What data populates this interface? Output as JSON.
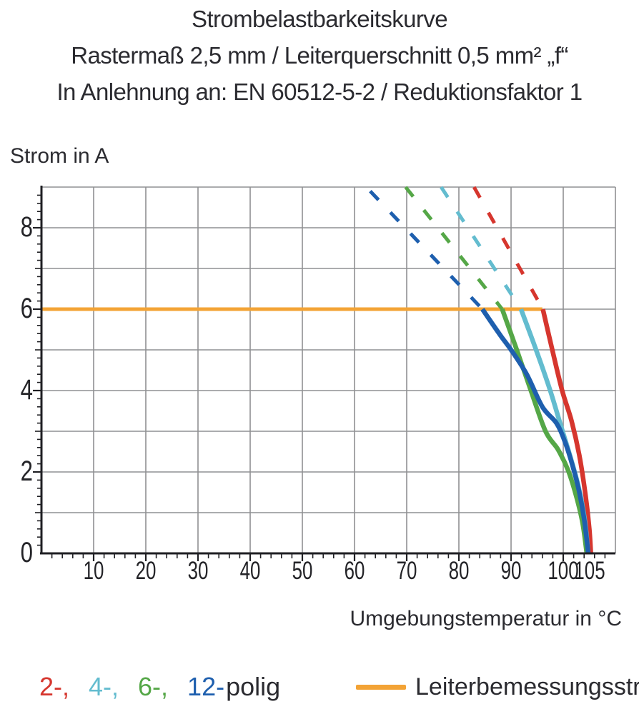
{
  "title": {
    "line1": "Strombelastbarkeitskurve",
    "line2": "Rastermaß 2,5 mm / Leiterquerschnitt 0,5 mm² „f“",
    "line3": "In Anlehnung an: EN 60512-5-2 / Reduktionsfaktor 1"
  },
  "chart_data": {
    "type": "line",
    "title": "Strombelastbarkeitskurve",
    "xlabel": "Umgebungstemperatur in °C",
    "ylabel": "Strom in A",
    "xlim": [
      0,
      110
    ],
    "ylim": [
      0,
      9
    ],
    "grid": "on",
    "x_ticks": [
      10,
      20,
      30,
      40,
      50,
      60,
      70,
      80,
      90,
      100,
      105
    ],
    "y_ticks": [
      0,
      2,
      4,
      6,
      8
    ],
    "x_gridlines_every": 10,
    "y_gridlines_every": 1,
    "reference_line": {
      "label": "Leiterbemessungsstrom",
      "value_A": 6,
      "x_start": 0,
      "x_end": 96,
      "color": "#F3A335"
    },
    "series": [
      {
        "name": "2-polig",
        "color": "#D6362E",
        "dashed": [
          [
            82.9,
            9
          ],
          [
            96.1,
            6
          ]
        ],
        "solid": [
          [
            96.1,
            6
          ],
          [
            97.9,
            5.0
          ],
          [
            99.8,
            4.0
          ],
          [
            101.6,
            3.25
          ],
          [
            103.1,
            2.4
          ],
          [
            104.3,
            1.4
          ],
          [
            105.0,
            0.6
          ],
          [
            105.3,
            0
          ]
        ]
      },
      {
        "name": "4-polig",
        "color": "#63BCCF",
        "dashed": [
          [
            76.6,
            9
          ],
          [
            91.9,
            6
          ]
        ],
        "solid": [
          [
            91.9,
            6
          ],
          [
            94.8,
            5.0
          ],
          [
            97.5,
            4.0
          ],
          [
            99.4,
            3.2
          ],
          [
            101.3,
            2.4
          ],
          [
            102.9,
            1.65
          ],
          [
            104.1,
            0.85
          ],
          [
            104.8,
            0
          ]
        ]
      },
      {
        "name": "6-polig",
        "color": "#55A747",
        "dashed": [
          [
            69.8,
            9
          ],
          [
            88.3,
            6
          ]
        ],
        "solid": [
          [
            88.3,
            6
          ],
          [
            91.1,
            5.0
          ],
          [
            93.8,
            4.0
          ],
          [
            96.6,
            3.0
          ],
          [
            99.0,
            2.55
          ],
          [
            100.9,
            2.05
          ],
          [
            102.4,
            1.45
          ],
          [
            103.7,
            0.75
          ],
          [
            104.5,
            0
          ]
        ]
      },
      {
        "name": "12-polig",
        "color": "#1E5FAE",
        "dashed": [
          [
            63.0,
            8.9
          ],
          [
            84.5,
            6
          ]
        ],
        "solid": [
          [
            84.5,
            6
          ],
          [
            88.0,
            5.35
          ],
          [
            90.0,
            5.0
          ],
          [
            93.0,
            4.4
          ],
          [
            96.0,
            3.6
          ],
          [
            98.7,
            3.2
          ],
          [
            100.3,
            2.75
          ],
          [
            101.8,
            2.15
          ],
          [
            103.0,
            1.55
          ],
          [
            104.0,
            0.85
          ],
          [
            104.8,
            0
          ]
        ]
      }
    ]
  },
  "legend": {
    "pole_items": [
      {
        "label": "2-,",
        "color": "#D6362E"
      },
      {
        "label": "4-,",
        "color": "#63BCCF"
      },
      {
        "label": "6-,",
        "color": "#55A747"
      },
      {
        "label": "12-",
        "color": "#1E5FAE"
      }
    ],
    "suffix": "polig",
    "reference": {
      "label": "Leiterbemessungsstrom",
      "color": "#F3A335"
    }
  },
  "colors": {
    "grid": "#8F9093",
    "axis": "#1F1F23",
    "text": "#2B2B30"
  }
}
